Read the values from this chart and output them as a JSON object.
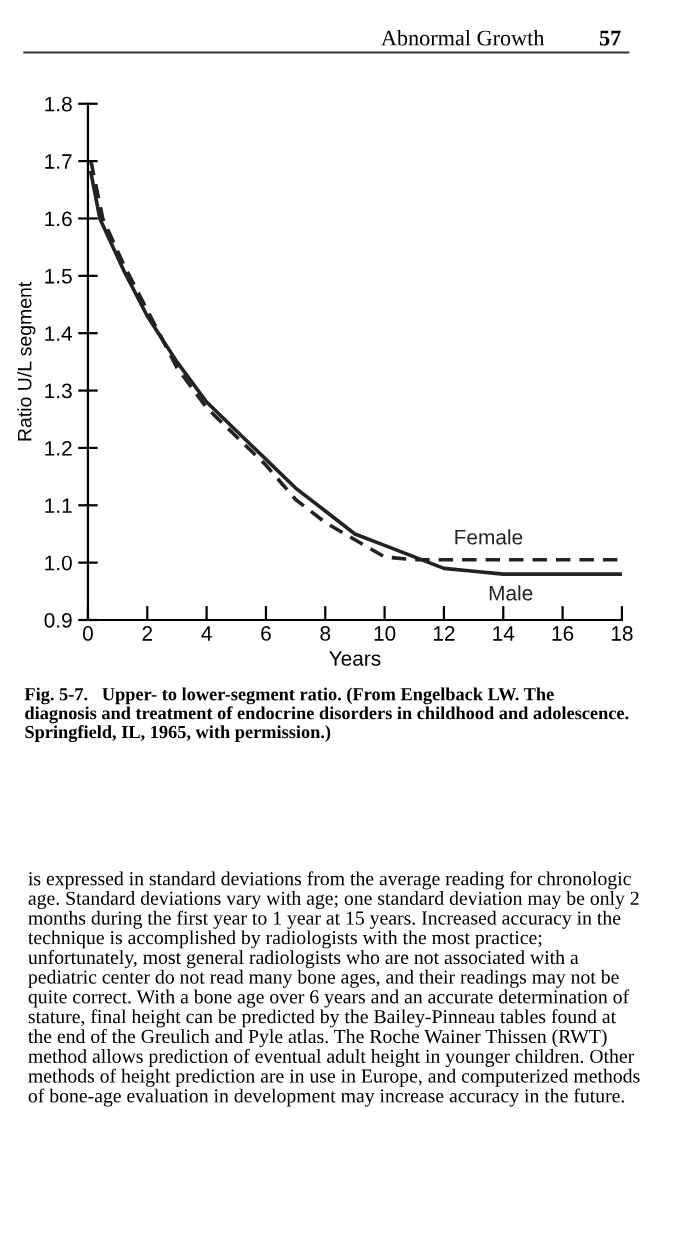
{
  "chart_data": {
    "type": "line",
    "xlabel": "Years",
    "ylabel": "Ratio U/L segment",
    "xlim": [
      0,
      18
    ],
    "xticks": [
      0,
      2,
      4,
      6,
      8,
      10,
      12,
      14,
      16,
      18
    ],
    "ylim": [
      0.9,
      1.8
    ],
    "yticks": [
      0.9,
      {
        "value": 1.0,
        "label": "1.0"
      },
      1.1,
      1.2,
      1.3,
      1.4,
      1.5,
      1.6,
      1.7,
      1.8
    ],
    "grid": false,
    "legend": false,
    "marker": "none",
    "series": [
      {
        "name": "Female",
        "color": "#222222",
        "line_style": "dashed",
        "x": [
          0.1,
          0.5,
          1.2,
          2.0,
          2.5,
          3,
          4,
          5,
          6,
          7,
          8,
          9,
          10,
          11,
          11.5,
          12,
          14,
          16,
          18
        ],
        "values": [
          1.7,
          1.6,
          1.52,
          1.44,
          1.39,
          1.34,
          1.27,
          1.22,
          1.17,
          1.11,
          1.07,
          1.04,
          1.01,
          1.005,
          1.005,
          1.005,
          1.005,
          1.005,
          1.005
        ]
      },
      {
        "name": "Male",
        "color": "#222222",
        "line_style": "solid",
        "x": [
          0.1,
          0.4,
          1.2,
          2.0,
          2.5,
          3,
          4,
          5,
          6,
          7,
          8,
          9,
          10,
          11,
          11.5,
          12,
          13,
          14,
          16,
          18
        ],
        "values": [
          1.68,
          1.6,
          1.51,
          1.43,
          1.39,
          1.35,
          1.28,
          1.23,
          1.18,
          1.13,
          1.09,
          1.05,
          1.03,
          1.01,
          1.0,
          0.99,
          0.985,
          0.98,
          0.98,
          0.98
        ]
      }
    ],
    "annotations": [
      "Abnormal Growth",
      "57",
      "Fig. 5-7.   Upper- to lower-segment ratio. (From Engelback LW. The diagnosis and treatment of endocrine disorders in childhood and adolescence. Springfield, IL, 1965, with permission.)",
      "is expressed in standard deviations from the average reading for chronologic age. Standard deviations vary with age; one standard deviation may be only 2 months during the first year to 1 year at 15 years. Increased accuracy in the technique is accomplished by radiologists with the most practice; unfortunately, most general radiologists who are not associated with a pediatric center do not read many bone ages, and their readings may not be quite correct. With a bone age over 6 years and an accurate determination of stature, final height can be predicted by the Bailey-Pinneau tables found at the end of the Greulich and Pyle atlas. The Roche Wainer Thissen (RWT) method allows prediction of eventual adult height in younger children. Other methods of height prediction are in use in Europe, and computerized methods of bone-age evaluation in development may increase accuracy in the future."
    ]
  }
}
